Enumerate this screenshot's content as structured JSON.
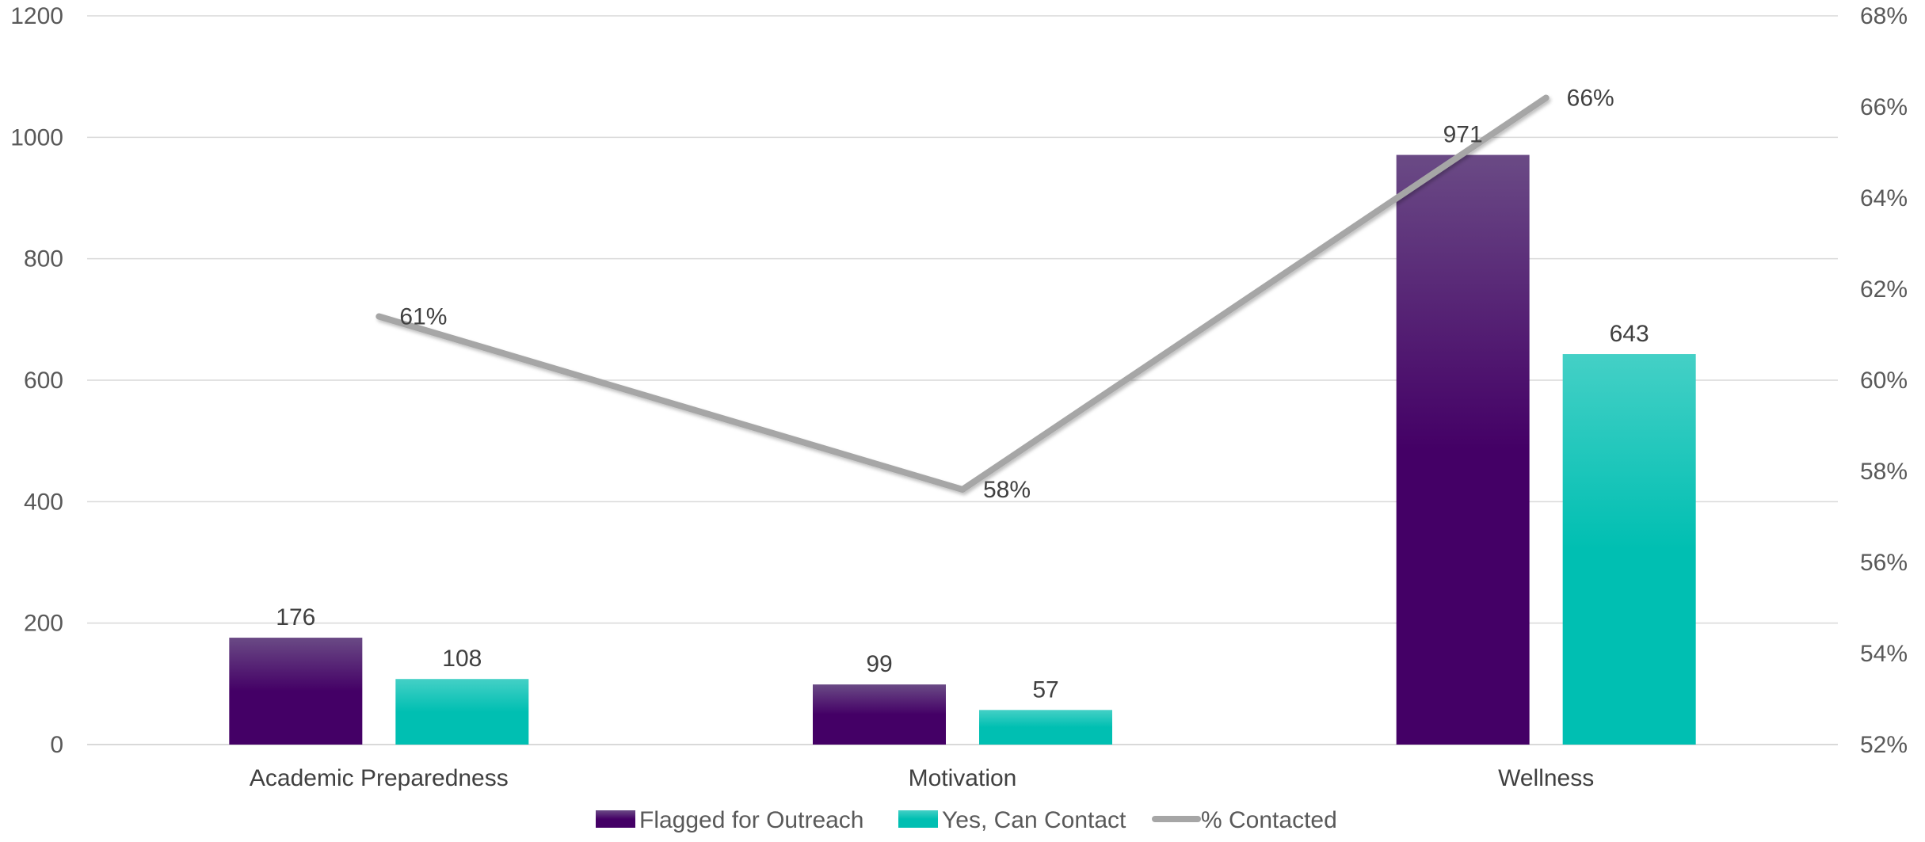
{
  "chart_data": {
    "type": "bar",
    "categories": [
      "Academic Preparedness",
      "Motivation",
      "Wellness"
    ],
    "series": [
      {
        "name": "Flagged for Outreach",
        "type": "bar",
        "axis": "left",
        "values": [
          176,
          99,
          971
        ],
        "labels": [
          "176",
          "99",
          "971"
        ]
      },
      {
        "name": "Yes, Can Contact",
        "type": "bar",
        "axis": "left",
        "values": [
          108,
          57,
          643
        ],
        "labels": [
          "108",
          "57",
          "643"
        ]
      },
      {
        "name": "% Contacted",
        "type": "line",
        "axis": "right",
        "values": [
          61.4,
          57.6,
          66.2
        ],
        "labels": [
          "61%",
          "58%",
          "66%"
        ]
      }
    ],
    "y_left": {
      "ylim": [
        0,
        1200
      ],
      "ticks": [
        0,
        200,
        400,
        600,
        800,
        1000,
        1200
      ],
      "tick_labels": [
        "0",
        "200",
        "400",
        "600",
        "800",
        "1000",
        "1200"
      ]
    },
    "y_right": {
      "ylim": [
        52,
        68
      ],
      "ticks": [
        52,
        54,
        56,
        58,
        60,
        62,
        64,
        66,
        68
      ],
      "tick_labels": [
        "52%",
        "54%",
        "56%",
        "58%",
        "60%",
        "62%",
        "64%",
        "66%",
        "68%"
      ]
    },
    "grid": true,
    "legend_position": "bottom",
    "colors": {
      "Flagged for Outreach": "#440066",
      "Flagged for Outreach_top": "#6a4a85",
      "Yes, Can Contact": "#00bfb2",
      "Yes, Can Contact_top": "#44d0c6",
      "% Contacted": "#a6a6a6",
      "gridline": "#d9d9d9"
    }
  }
}
